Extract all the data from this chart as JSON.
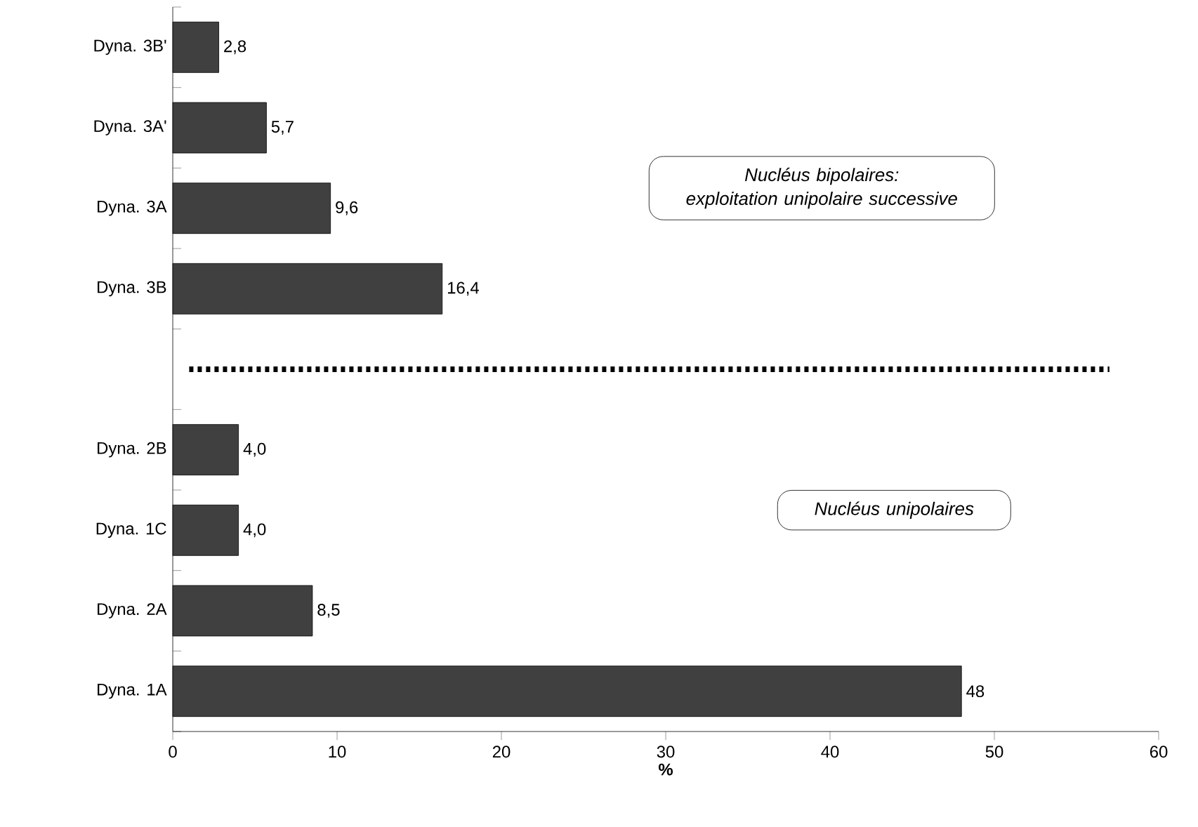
{
  "chart_data": {
    "type": "bar",
    "orientation": "horizontal",
    "xlabel": "%",
    "categories": [
      "Dyna. 3B'",
      "Dyna. 3A'",
      "Dyna. 3A",
      "Dyna. 3B",
      null,
      "Dyna. 2B",
      "Dyna. 1C",
      "Dyna. 2A",
      "Dyna. 1A"
    ],
    "values": [
      2.8,
      5.7,
      9.6,
      16.4,
      null,
      4.0,
      4.0,
      8.5,
      48
    ],
    "value_labels": [
      "2,8",
      "5,7",
      "9,6",
      "16,4",
      null,
      "4,0",
      "4,0",
      "8,5",
      "48"
    ],
    "color": "#404040",
    "xlim": [
      0,
      60
    ],
    "xticks": [
      0,
      10,
      20,
      30,
      40,
      50,
      60
    ],
    "annotations": [
      "Nucléus bipolaires:",
      "exploitation unipolaire successive",
      "Nucléus unipolaires"
    ]
  }
}
